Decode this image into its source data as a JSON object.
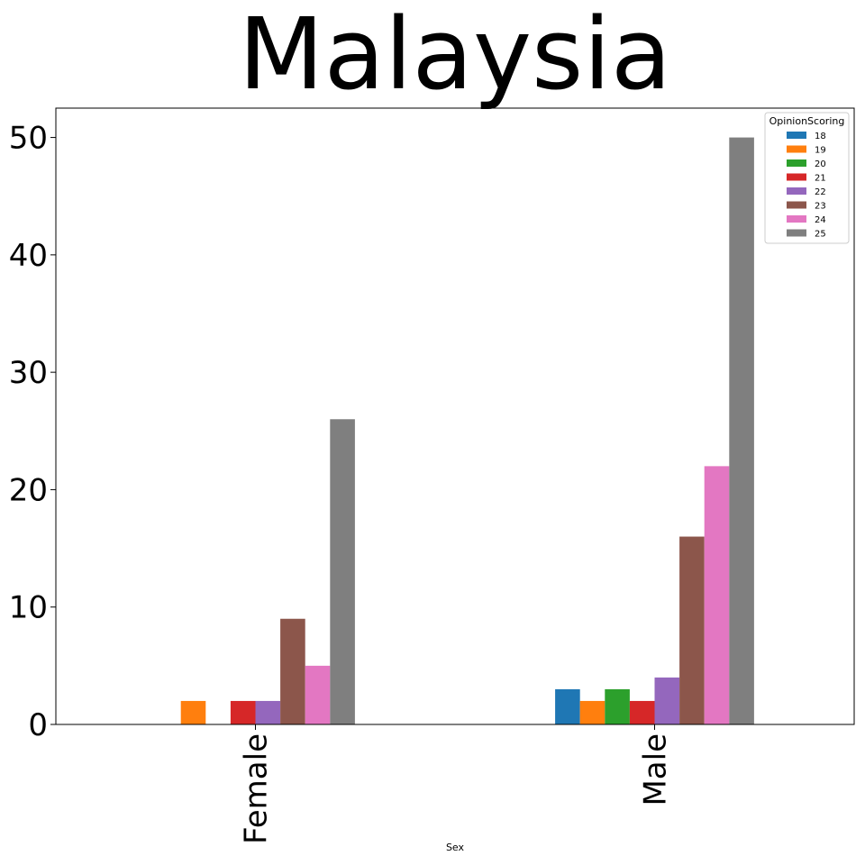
{
  "chart_data": {
    "type": "bar",
    "title": "Malaysia",
    "xlabel": "Sex",
    "ylabel": "",
    "categories": [
      "Female",
      "Male"
    ],
    "ylim": [
      0,
      52.5
    ],
    "yticks": [
      0,
      10,
      20,
      30,
      40,
      50
    ],
    "grid": false,
    "legend": {
      "title": "OpinionScoring",
      "placement": "top-right"
    },
    "series": [
      {
        "name": "18",
        "color": "#1f77b4",
        "values": [
          0,
          3
        ]
      },
      {
        "name": "19",
        "color": "#ff7f0e",
        "values": [
          2,
          2
        ]
      },
      {
        "name": "20",
        "color": "#2ca02c",
        "values": [
          0,
          3
        ]
      },
      {
        "name": "21",
        "color": "#d62728",
        "values": [
          2,
          2
        ]
      },
      {
        "name": "22",
        "color": "#9467bd",
        "values": [
          2,
          4
        ]
      },
      {
        "name": "23",
        "color": "#8c564b",
        "values": [
          9,
          16
        ]
      },
      {
        "name": "24",
        "color": "#e377c2",
        "values": [
          5,
          22
        ]
      },
      {
        "name": "25",
        "color": "#7f7f7f",
        "values": [
          26,
          50
        ]
      }
    ]
  }
}
